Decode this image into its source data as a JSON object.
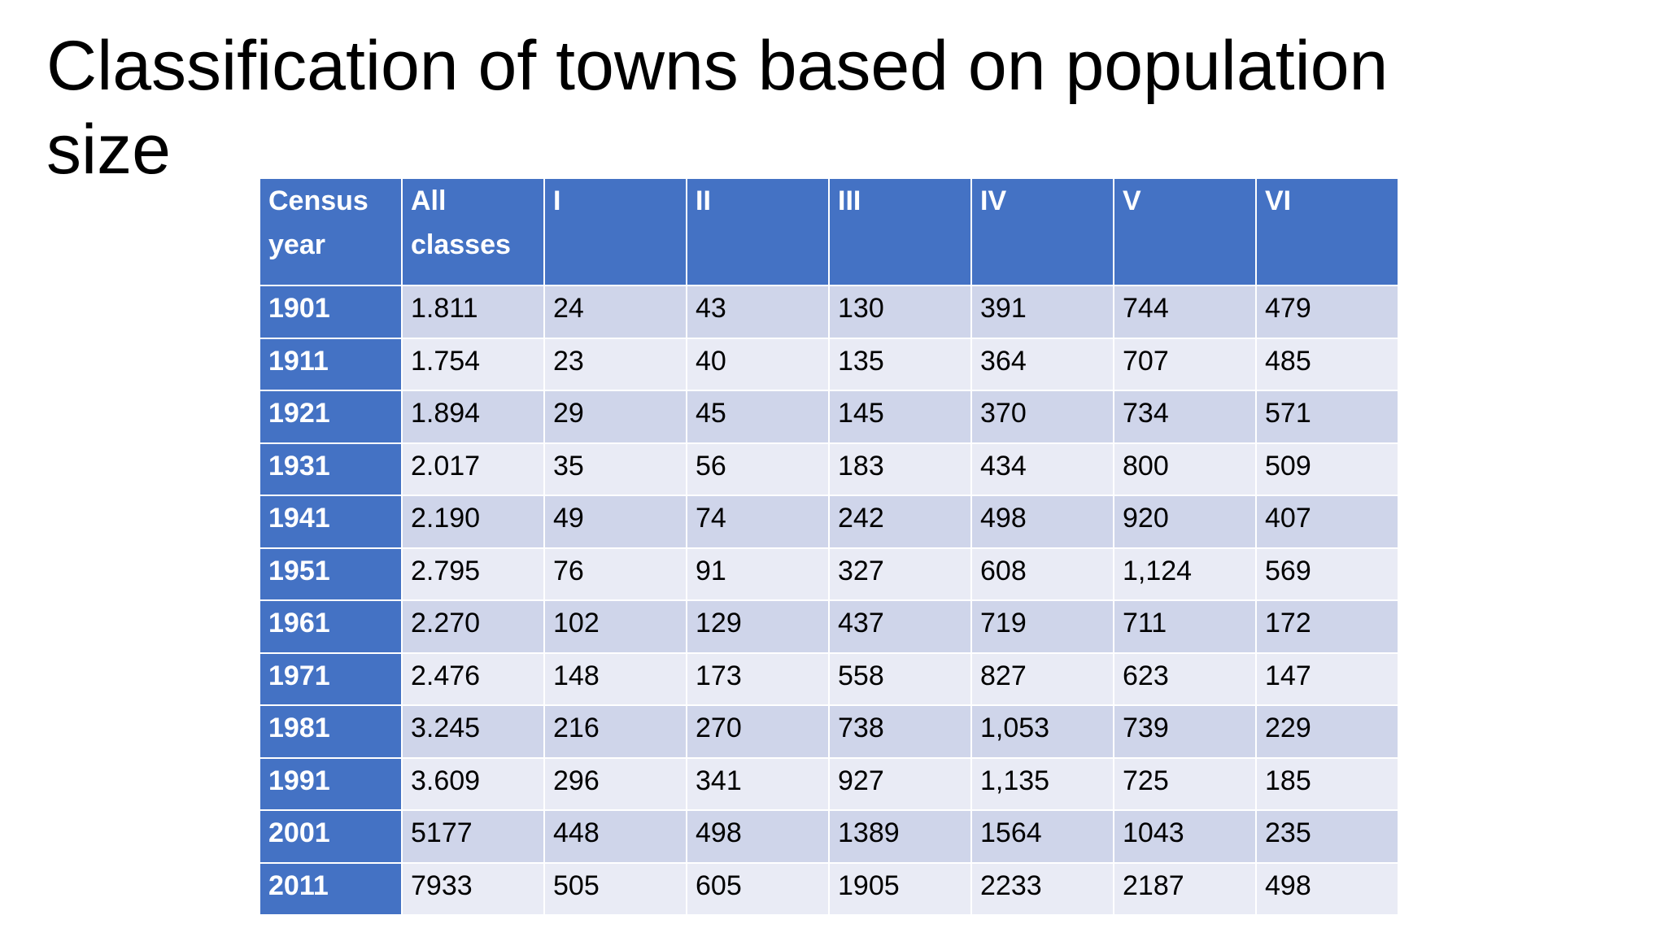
{
  "slide": {
    "title": "Classification of towns based on population size"
  },
  "table": {
    "headers": [
      "Census year",
      "All classes",
      "I",
      "II",
      "III",
      "IV",
      "V",
      "VI"
    ],
    "rows": [
      [
        "1901",
        "1.811",
        "24",
        "43",
        "130",
        "391",
        "744",
        "479"
      ],
      [
        "1911",
        "1.754",
        "23",
        "40",
        "135",
        "364",
        "707",
        "485"
      ],
      [
        "1921",
        "1.894",
        "29",
        "45",
        "145",
        "370",
        "734",
        "571"
      ],
      [
        "1931",
        "2.017",
        "35",
        "56",
        "183",
        "434",
        "800",
        "509"
      ],
      [
        "1941",
        "2.190",
        "49",
        "74",
        "242",
        "498",
        "920",
        "407"
      ],
      [
        "1951",
        "2.795",
        "76",
        "91",
        "327",
        "608",
        "1,124",
        "569"
      ],
      [
        "1961",
        "2.270",
        "102",
        "129",
        "437",
        "719",
        "711",
        "172"
      ],
      [
        "1971",
        "2.476",
        "148",
        "173",
        "558",
        "827",
        "623",
        "147"
      ],
      [
        "1981",
        "3.245",
        "216",
        "270",
        "738",
        "1,053",
        "739",
        "229"
      ],
      [
        "1991",
        "3.609",
        "296",
        "341",
        "927",
        "1,135",
        "725",
        "185"
      ],
      [
        "2001",
        "5177",
        "448",
        "498",
        "1389",
        "1564",
        "1043",
        "235"
      ],
      [
        "2011",
        "7933",
        "505",
        "605",
        "1905",
        "2233",
        "2187",
        "498"
      ]
    ]
  },
  "colors": {
    "header_bg": "#4472c4",
    "row_band_dark": "#cfd5ea",
    "row_band_light": "#e9ebf5",
    "header_text": "#ffffff",
    "body_text": "#000000"
  }
}
